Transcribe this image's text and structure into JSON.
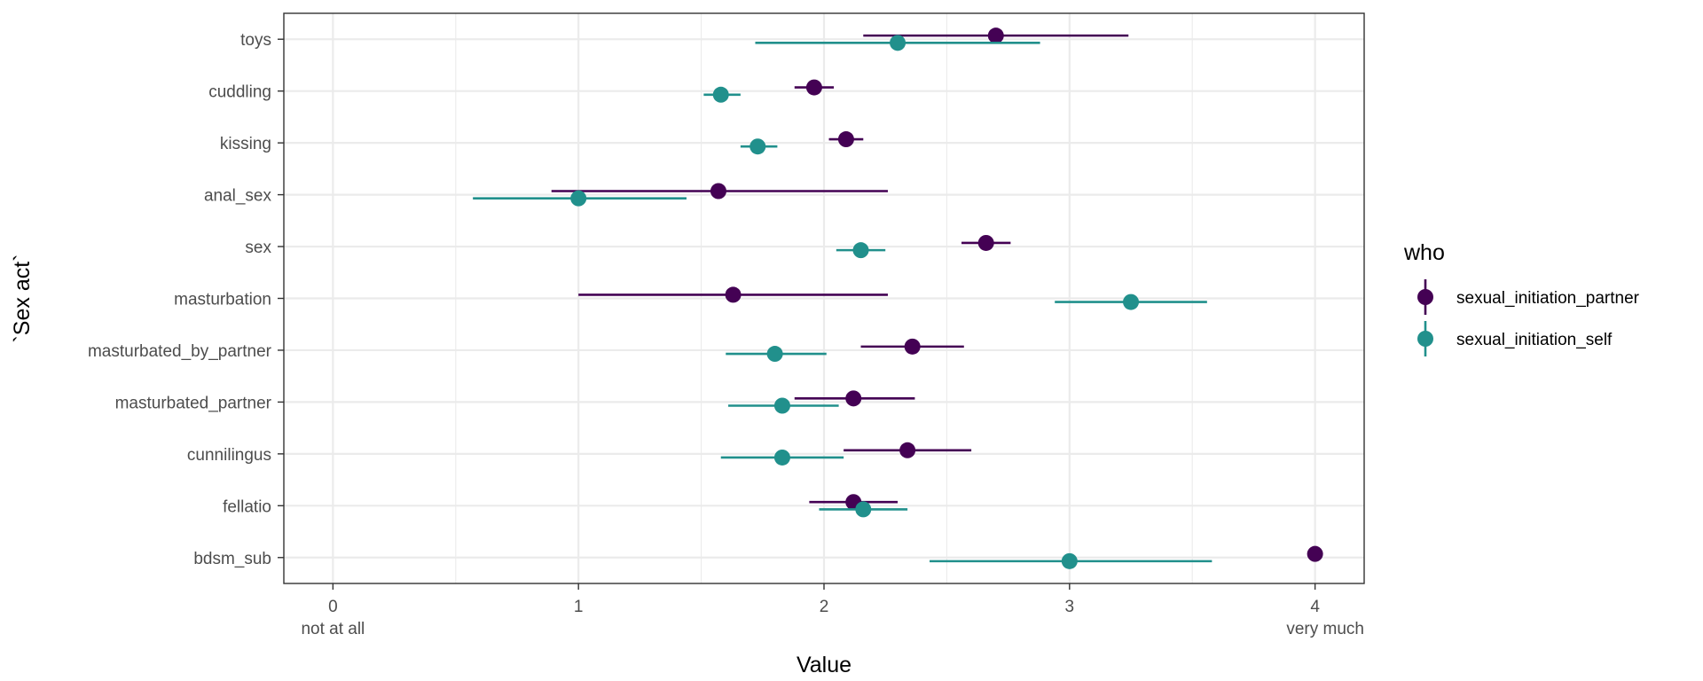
{
  "chart_data": {
    "type": "scatter",
    "subtype": "point-range (dot with horizontal error bars)",
    "xlabel": "Value",
    "ylabel": "`Sex act`",
    "xlim": [
      -0.2,
      4.2
    ],
    "x_ticks": [
      {
        "value": 0,
        "label": "0",
        "sublabel": "not at all"
      },
      {
        "value": 1,
        "label": "1",
        "sublabel": ""
      },
      {
        "value": 2,
        "label": "2",
        "sublabel": ""
      },
      {
        "value": 3,
        "label": "3",
        "sublabel": ""
      },
      {
        "value": 4,
        "label": "4",
        "sublabel": ""
      }
    ],
    "x_right_sublabel": "very much",
    "grid": true,
    "categories": [
      "toys",
      "cuddling",
      "kissing",
      "anal_sex",
      "sex",
      "masturbation",
      "masturbated_by_partner",
      "masturbated_partner",
      "cunnilingus",
      "fellatio",
      "bdsm_sub"
    ],
    "legend": {
      "title": "who",
      "position": "right"
    },
    "series": [
      {
        "name": "sexual_initiation_partner",
        "color": "#440154",
        "offset": -0.07,
        "values": [
          2.7,
          1.96,
          2.09,
          1.57,
          2.66,
          1.63,
          2.36,
          2.12,
          2.34,
          2.12,
          4.0
        ],
        "lower": [
          2.16,
          1.88,
          2.02,
          0.89,
          2.56,
          1.0,
          2.15,
          1.88,
          2.08,
          1.94,
          4.0
        ],
        "upper": [
          3.24,
          2.04,
          2.16,
          2.26,
          2.76,
          2.26,
          2.57,
          2.37,
          2.6,
          2.3,
          4.0
        ]
      },
      {
        "name": "sexual_initiation_self",
        "color": "#21908C",
        "offset": 0.07,
        "values": [
          2.3,
          1.58,
          1.73,
          1.0,
          2.15,
          3.25,
          1.8,
          1.83,
          1.83,
          2.16,
          3.0
        ],
        "lower": [
          1.72,
          1.51,
          1.66,
          0.57,
          2.05,
          2.94,
          1.6,
          1.61,
          1.58,
          1.98,
          2.43
        ],
        "upper": [
          2.88,
          1.66,
          1.81,
          1.44,
          2.25,
          3.56,
          2.01,
          2.06,
          2.08,
          2.34,
          3.58
        ]
      }
    ]
  }
}
